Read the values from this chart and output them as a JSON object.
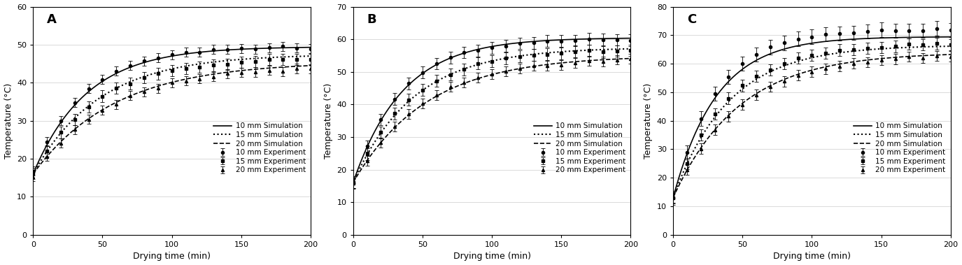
{
  "panels": [
    {
      "label": "A",
      "ylim": [
        0,
        60
      ],
      "yticks": [
        0,
        10,
        20,
        30,
        40,
        50,
        60
      ],
      "sim_10_params": {
        "T0": 16,
        "T_inf": 49.5,
        "k": 0.026
      },
      "sim_15_params": {
        "T0": 16,
        "T_inf": 47.5,
        "k": 0.021
      },
      "sim_20_params": {
        "T0": 16,
        "T_inf": 45.5,
        "k": 0.017
      },
      "exp_10": {
        "T0": 16.5,
        "T_inf": 49.5,
        "k": 0.027,
        "err": 1.2
      },
      "exp_15": {
        "T0": 16.0,
        "T_inf": 46.5,
        "k": 0.022,
        "err": 1.5
      },
      "exp_20": {
        "T0": 15.5,
        "T_inf": 44.5,
        "k": 0.018,
        "err": 1.2
      }
    },
    {
      "label": "B",
      "ylim": [
        0,
        70
      ],
      "yticks": [
        0,
        10,
        20,
        30,
        40,
        50,
        60,
        70
      ],
      "sim_10_params": {
        "T0": 16,
        "T_inf": 60.5,
        "k": 0.028
      },
      "sim_15_params": {
        "T0": 16,
        "T_inf": 57.5,
        "k": 0.023
      },
      "sim_20_params": {
        "T0": 16,
        "T_inf": 55.0,
        "k": 0.019
      },
      "exp_10": {
        "T0": 16,
        "T_inf": 60.0,
        "k": 0.029,
        "err": 1.8
      },
      "exp_15": {
        "T0": 16,
        "T_inf": 57.0,
        "k": 0.024,
        "err": 1.8
      },
      "exp_20": {
        "T0": 16,
        "T_inf": 54.5,
        "k": 0.02,
        "err": 1.5
      }
    },
    {
      "label": "C",
      "ylim": [
        0,
        80
      ],
      "yticks": [
        0,
        10,
        20,
        30,
        40,
        50,
        60,
        70,
        80
      ],
      "sim_10_params": {
        "T0": 13,
        "T_inf": 69.5,
        "k": 0.032
      },
      "sim_15_params": {
        "T0": 13,
        "T_inf": 66.5,
        "k": 0.025
      },
      "sim_20_params": {
        "T0": 13,
        "T_inf": 64.0,
        "k": 0.021
      },
      "exp_10": {
        "T0": 13,
        "T_inf": 72.0,
        "k": 0.032,
        "err": 2.5
      },
      "exp_15": {
        "T0": 13,
        "T_inf": 67.0,
        "k": 0.026,
        "err": 2.0
      },
      "exp_20": {
        "T0": 13,
        "T_inf": 63.5,
        "k": 0.021,
        "err": 1.8
      }
    }
  ],
  "xlabel": "Drying time (min)",
  "ylabel": "Temperature (°C)",
  "xlim": [
    0,
    200
  ],
  "xticks": [
    0,
    50,
    100,
    150,
    200
  ],
  "legend_entries": [
    "10 mm Simulation",
    "15 mm Simulation",
    "20 mm Simulation",
    "10 mm Experiment",
    "15 mm Experiment",
    "20 mm Experiment"
  ]
}
